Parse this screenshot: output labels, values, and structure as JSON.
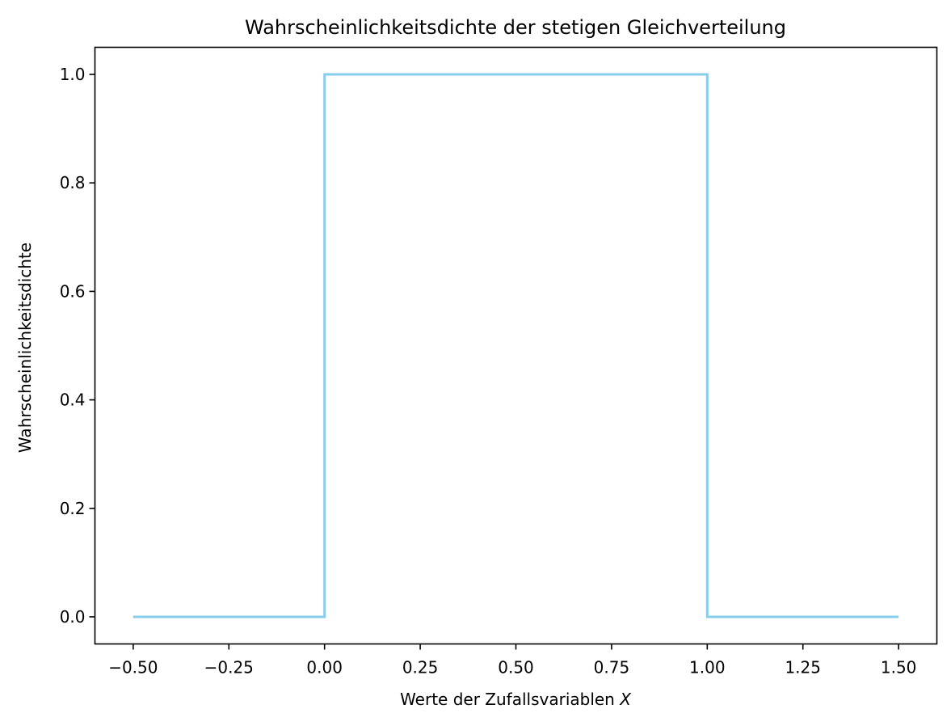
{
  "chart_data": {
    "type": "line",
    "title": "Wahrscheinlichkeitsdichte der stetigen Gleichverteilung",
    "xlabel_text": "Werte der Zufallsvariablen ",
    "xlabel_var": "X",
    "ylabel": "Wahrscheinlichkeitsdichte",
    "xlim": [
      -0.6,
      1.6
    ],
    "ylim": [
      -0.05,
      1.05
    ],
    "x_ticks": [
      -0.5,
      -0.25,
      0.0,
      0.25,
      0.5,
      0.75,
      1.0,
      1.25,
      1.5
    ],
    "x_tick_labels": [
      "−0.50",
      "−0.25",
      "0.00",
      "0.25",
      "0.50",
      "0.75",
      "1.00",
      "1.25",
      "1.50"
    ],
    "y_ticks": [
      0.0,
      0.2,
      0.4,
      0.6,
      0.8,
      1.0
    ],
    "y_tick_labels": [
      "0.0",
      "0.2",
      "0.4",
      "0.6",
      "0.8",
      "1.0"
    ],
    "grid": false,
    "series": [
      {
        "color": "#87ceeb",
        "x": [
          -0.5,
          0.0,
          0.0,
          1.0,
          1.0,
          1.5
        ],
        "y": [
          0.0,
          0.0,
          1.0,
          1.0,
          0.0,
          0.0
        ]
      }
    ]
  }
}
